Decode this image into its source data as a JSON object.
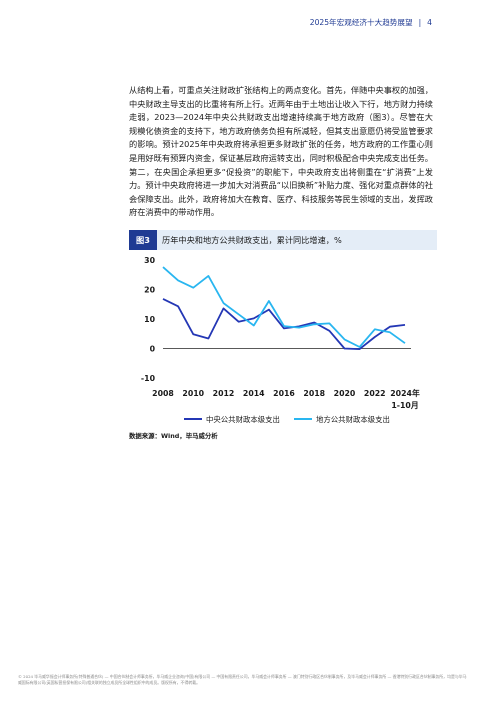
{
  "header": {
    "title": "2025年宏观经济十大趋势展望",
    "separator": "|",
    "page_number": "4"
  },
  "body_text": "从结构上看，可重点关注财政扩张结构上的两点变化。首先，伴随中央事权的加强，中央财政主导支出的比重将有所上行。近两年由于土地出让收入下行，地方财力持续走弱，2023—2024年中央公共财政支出增速持续高于地方政府（图3）。尽管在大规模化债资金的支持下，地方政府债务负担有所减轻，但其支出意愿仍将受监管要求的影响。预计2025年中央政府将承担更多财政扩张的任务，地方政府的工作重心则是用好既有预算内资金，保证基层政府运转支出，同时积极配合中央完成支出任务。第二，在央国企承担更多“促投资”的职能下，中央政府支出将侧重在“扩消费”上发力。预计中央政府将进一步加大对消费品“以旧换新”补贴力度、强化对重点群体的社会保障支出。此外，政府将加大在教育、医疗、科技服务等民生领域的支出，发挥政府在消费中的带动作用。",
  "figure": {
    "tag": "图3",
    "title": "历年中央和地方公共财政支出，累计同比增速，%"
  },
  "chart_data": {
    "type": "line",
    "x": [
      2008,
      2009,
      2010,
      2011,
      2012,
      2013,
      2014,
      2015,
      2016,
      2017,
      2018,
      2019,
      2020,
      2021,
      2022,
      2023,
      2024
    ],
    "x_tick_labels": [
      "2008",
      "2010",
      "2012",
      "2014",
      "2016",
      "2018",
      "2020",
      "2022",
      "2024年",
      "1-10月"
    ],
    "series": [
      {
        "name": "中央公共财政本级支出",
        "color": "#2437b5",
        "values": [
          16.8,
          14.3,
          4.8,
          3.4,
          13.6,
          9.1,
          10.2,
          13.2,
          6.8,
          7.5,
          8.8,
          6.0,
          0.0,
          -0.2,
          3.9,
          7.4,
          8.0
        ]
      },
      {
        "name": "地方公共财政本级支出",
        "color": "#29b6f0",
        "values": [
          27.6,
          23.1,
          20.6,
          24.6,
          15.4,
          11.6,
          7.8,
          16.1,
          7.6,
          7.1,
          8.2,
          8.5,
          3.1,
          0.5,
          6.5,
          5.5,
          1.8
        ]
      }
    ],
    "y_ticks": [
      -10,
      0,
      10,
      20,
      30
    ],
    "ylim": [
      -10,
      30
    ],
    "xlim": [
      2008,
      2024
    ],
    "grid": false,
    "legend_position": "bottom"
  },
  "source": "数据来源：Wind，毕马威分析",
  "footer": "© 2024 毕马威华振会计师事务所(特殊普通合伙) — 中国合伙制会计师事务所，毕马威企业咨询(中国)有限公司 — 中国有限责任公司，毕马威会计师事务所 — 澳门特别行政区合伙制事务所，及毕马威会计师事务所 — 香港特别行政区合伙制事务所，均是与毕马威国际有限公司(英国私营担保有限公司)相关联的独立成员所全球性组织中的成员。版权所有，不得转载。"
}
